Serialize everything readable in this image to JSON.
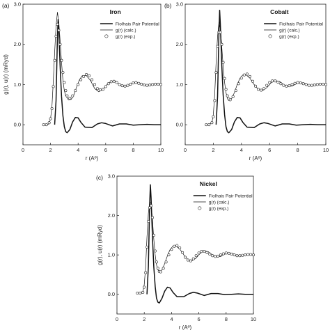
{
  "chart_data": [
    {
      "type": "line",
      "panel_label": "(a)",
      "title": "Iron",
      "xlabel": "r (Aº)",
      "ylabel": "g(r), u(r) (mRyd)",
      "xlim": [
        0,
        10
      ],
      "ylim": [
        -0.5,
        3.0
      ],
      "xticks": [
        0,
        2,
        4,
        6,
        8,
        10
      ],
      "yticks": [
        0.0,
        1.0,
        2.0,
        3.0
      ],
      "xtick_labels": [
        "0",
        "2",
        "4",
        "6",
        "8",
        "10"
      ],
      "ytick_labels": [
        "0.0",
        "1.0",
        "2.0",
        "3.0"
      ],
      "legend_position": "top-right",
      "series": [
        {
          "name": "Fiolhais Pair Potential",
          "style": "thick-line",
          "x": [
            2.3,
            2.4,
            2.5,
            2.55,
            2.6,
            2.7,
            2.8,
            2.9,
            3.0,
            3.1,
            3.2,
            3.4,
            3.6,
            3.8,
            4.0,
            4.2,
            4.5,
            5.0,
            5.4,
            5.7,
            6.0,
            6.5,
            7.0,
            7.5,
            8.0,
            8.5,
            9.0,
            9.5,
            10.0
          ],
          "y": [
            0.0,
            0.6,
            2.2,
            2.62,
            2.3,
            1.4,
            0.7,
            0.22,
            -0.05,
            -0.17,
            -0.2,
            -0.12,
            0.07,
            0.18,
            0.17,
            0.06,
            -0.06,
            -0.07,
            0.02,
            0.05,
            0.03,
            -0.03,
            0.02,
            0.02,
            -0.01,
            0.0,
            0.01,
            0.0,
            0.0
          ]
        },
        {
          "name": "g(r) (calc.)",
          "style": "thin-line",
          "x": [
            1.7,
            1.9,
            2.0,
            2.1,
            2.2,
            2.3,
            2.4,
            2.5,
            2.6,
            2.7,
            2.8,
            2.9,
            3.0,
            3.1,
            3.3,
            3.5,
            3.7,
            3.9,
            4.1,
            4.3,
            4.6,
            4.9,
            5.2,
            5.5,
            5.8,
            6.1,
            6.4,
            6.7,
            7.0,
            7.3,
            7.6,
            7.9,
            8.2,
            8.5,
            8.8,
            9.1,
            9.4,
            9.7,
            10.0
          ],
          "y": [
            0.0,
            0.02,
            0.15,
            0.45,
            1.1,
            1.8,
            2.45,
            2.8,
            2.55,
            2.05,
            1.55,
            1.1,
            0.85,
            0.72,
            0.62,
            0.63,
            0.75,
            0.95,
            1.12,
            1.22,
            1.22,
            1.1,
            0.9,
            0.82,
            0.88,
            1.0,
            1.08,
            1.08,
            1.0,
            0.95,
            0.96,
            1.02,
            1.06,
            1.03,
            0.98,
            0.97,
            1.0,
            1.02,
            1.0
          ]
        },
        {
          "name": "g(r) (exp.)",
          "style": "markers",
          "x": [
            1.5,
            1.7,
            1.9,
            2.0,
            2.1,
            2.2,
            2.3,
            2.4,
            2.5,
            2.6,
            2.7,
            2.8,
            2.9,
            3.0,
            3.1,
            3.2,
            3.4,
            3.6,
            3.8,
            4.0,
            4.2,
            4.4,
            4.6,
            4.8,
            5.0,
            5.2,
            5.4,
            5.6,
            5.8,
            6.0,
            6.2,
            6.4,
            6.6,
            6.8,
            7.0,
            7.2,
            7.4,
            7.6,
            7.8,
            8.0,
            8.2,
            8.4,
            8.6,
            8.8,
            9.0,
            9.2,
            9.4,
            9.6,
            9.8,
            10.0
          ],
          "y": [
            0.0,
            0.0,
            0.05,
            0.15,
            0.4,
            0.95,
            1.6,
            2.2,
            2.5,
            2.35,
            2.0,
            1.6,
            1.3,
            1.05,
            0.85,
            0.72,
            0.66,
            0.72,
            0.85,
            1.0,
            1.12,
            1.2,
            1.25,
            1.22,
            1.12,
            1.0,
            0.9,
            0.87,
            0.88,
            0.95,
            1.02,
            1.07,
            1.08,
            1.05,
            1.0,
            0.97,
            0.96,
            0.98,
            1.01,
            1.04,
            1.05,
            1.03,
            1.01,
            0.99,
            0.98,
            0.99,
            1.0,
            1.01,
            1.01,
            1.0
          ]
        }
      ]
    },
    {
      "type": "line",
      "panel_label": "(b)",
      "title": "Cobalt",
      "xlabel": "r (Aº)",
      "ylabel": "",
      "xlim": [
        0,
        10
      ],
      "ylim": [
        -0.5,
        3.0
      ],
      "xticks": [
        0,
        2,
        4,
        6,
        8,
        10
      ],
      "yticks": [
        0.0,
        1.0,
        2.0,
        3.0
      ],
      "xtick_labels": [
        "0",
        "2",
        "4",
        "6",
        "8",
        "10"
      ],
      "ytick_labels": [
        "0.0",
        "1.0",
        "2.0",
        "3.0"
      ],
      "legend_position": "top-right",
      "series": [
        {
          "name": "Fiolhais Pair Potential",
          "style": "thick-line",
          "x": [
            2.2,
            2.3,
            2.4,
            2.45,
            2.5,
            2.6,
            2.7,
            2.8,
            2.9,
            3.0,
            3.1,
            3.3,
            3.5,
            3.7,
            3.9,
            4.1,
            4.4,
            4.9,
            5.3,
            5.6,
            5.9,
            6.4,
            6.9,
            7.4,
            7.9,
            8.4,
            8.9,
            9.4,
            10.0
          ],
          "y": [
            0.0,
            0.7,
            2.3,
            2.85,
            2.5,
            1.5,
            0.75,
            0.25,
            -0.05,
            -0.17,
            -0.2,
            -0.12,
            0.07,
            0.18,
            0.17,
            0.06,
            -0.06,
            -0.07,
            0.02,
            0.05,
            0.03,
            -0.03,
            0.02,
            0.02,
            -0.01,
            0.0,
            0.01,
            0.0,
            0.0
          ]
        },
        {
          "name": "g(r) (calc.)",
          "style": "thin-line",
          "x": [
            1.7,
            1.9,
            2.0,
            2.1,
            2.2,
            2.3,
            2.4,
            2.5,
            2.6,
            2.7,
            2.8,
            2.9,
            3.0,
            3.1,
            3.3,
            3.5,
            3.7,
            3.9,
            4.1,
            4.3,
            4.6,
            4.9,
            5.2,
            5.5,
            5.8,
            6.1,
            6.4,
            6.7,
            7.0,
            7.3,
            7.6,
            7.9,
            8.2,
            8.5,
            8.8,
            9.1,
            9.4,
            9.7,
            10.0
          ],
          "y": [
            0.0,
            0.05,
            0.25,
            0.75,
            1.55,
            2.2,
            2.55,
            2.4,
            1.95,
            1.45,
            1.05,
            0.8,
            0.66,
            0.6,
            0.65,
            0.8,
            1.0,
            1.16,
            1.24,
            1.25,
            1.16,
            1.0,
            0.88,
            0.85,
            0.92,
            1.04,
            1.1,
            1.08,
            1.0,
            0.95,
            0.96,
            1.02,
            1.05,
            1.03,
            0.98,
            0.97,
            1.0,
            1.02,
            1.0
          ]
        },
        {
          "name": "g(r) (exp.)",
          "style": "markers",
          "x": [
            1.5,
            1.7,
            1.9,
            2.0,
            2.1,
            2.2,
            2.3,
            2.4,
            2.5,
            2.6,
            2.7,
            2.8,
            2.9,
            3.0,
            3.1,
            3.2,
            3.4,
            3.6,
            3.8,
            4.0,
            4.2,
            4.4,
            4.6,
            4.8,
            5.0,
            5.2,
            5.4,
            5.6,
            5.8,
            6.0,
            6.2,
            6.4,
            6.6,
            6.8,
            7.0,
            7.2,
            7.4,
            7.6,
            7.8,
            8.0,
            8.2,
            8.4,
            8.6,
            8.8,
            9.0,
            9.2,
            9.4,
            9.6,
            9.8,
            10.0
          ],
          "y": [
            0.0,
            0.0,
            0.05,
            0.2,
            0.6,
            1.3,
            1.95,
            2.3,
            2.3,
            2.0,
            1.55,
            1.15,
            0.88,
            0.72,
            0.64,
            0.62,
            0.7,
            0.85,
            1.02,
            1.16,
            1.24,
            1.26,
            1.2,
            1.08,
            0.96,
            0.88,
            0.86,
            0.9,
            0.98,
            1.05,
            1.09,
            1.09,
            1.06,
            1.02,
            0.98,
            0.96,
            0.97,
            1.0,
            1.03,
            1.05,
            1.04,
            1.02,
            1.0,
            0.98,
            0.98,
            0.99,
            1.0,
            1.01,
            1.01,
            1.0
          ]
        }
      ]
    },
    {
      "type": "line",
      "panel_label": "(c)",
      "title": "Nickel",
      "xlabel": "r (Aº)",
      "ylabel": "g(r), u(r) (mRyd)",
      "xlim": [
        0,
        10
      ],
      "ylim": [
        -0.5,
        3.0
      ],
      "xticks": [
        0,
        2,
        4,
        6,
        8,
        10
      ],
      "yticks": [
        0.0,
        1.0,
        2.0,
        3.0
      ],
      "xtick_labels": [
        "0",
        "2",
        "4",
        "6",
        "8",
        "10"
      ],
      "ytick_labels": [
        "0.0",
        "1.0",
        "2.0",
        "3.0"
      ],
      "legend_position": "top-right",
      "series": [
        {
          "name": "Fiolhais Pair Potential",
          "style": "thick-line",
          "x": [
            2.2,
            2.3,
            2.4,
            2.45,
            2.5,
            2.6,
            2.7,
            2.8,
            2.9,
            3.0,
            3.1,
            3.3,
            3.5,
            3.7,
            3.9,
            4.1,
            4.4,
            4.9,
            5.3,
            5.6,
            5.9,
            6.4,
            6.9,
            7.4,
            7.9,
            8.4,
            8.9,
            9.4,
            10.0
          ],
          "y": [
            0.0,
            0.7,
            2.3,
            2.78,
            2.45,
            1.45,
            0.7,
            0.2,
            -0.1,
            -0.2,
            -0.22,
            -0.1,
            0.08,
            0.18,
            0.16,
            0.05,
            -0.06,
            -0.06,
            0.02,
            0.05,
            0.03,
            -0.03,
            0.02,
            0.02,
            -0.01,
            0.0,
            0.01,
            0.0,
            0.0
          ]
        },
        {
          "name": "g(r) (calc.)",
          "style": "thin-line",
          "x": [
            1.7,
            1.9,
            2.0,
            2.1,
            2.2,
            2.3,
            2.4,
            2.5,
            2.6,
            2.7,
            2.8,
            2.9,
            3.0,
            3.1,
            3.3,
            3.5,
            3.7,
            3.9,
            4.1,
            4.3,
            4.6,
            4.9,
            5.2,
            5.5,
            5.8,
            6.1,
            6.4,
            6.7,
            7.0,
            7.3,
            7.6,
            7.9,
            8.2,
            8.5,
            8.8,
            9.1,
            9.4,
            9.7,
            10.0
          ],
          "y": [
            0.0,
            0.05,
            0.25,
            0.7,
            1.45,
            2.05,
            2.35,
            2.3,
            1.9,
            1.4,
            1.0,
            0.75,
            0.62,
            0.57,
            0.62,
            0.78,
            0.98,
            1.14,
            1.22,
            1.23,
            1.15,
            1.0,
            0.88,
            0.85,
            0.92,
            1.04,
            1.1,
            1.08,
            1.0,
            0.95,
            0.96,
            1.02,
            1.05,
            1.03,
            0.98,
            0.97,
            1.0,
            1.02,
            1.0
          ]
        },
        {
          "name": "g(r) (exp.)",
          "style": "markers",
          "x": [
            1.5,
            1.7,
            1.9,
            2.0,
            2.1,
            2.2,
            2.3,
            2.4,
            2.5,
            2.6,
            2.7,
            2.8,
            2.9,
            3.0,
            3.1,
            3.2,
            3.4,
            3.6,
            3.8,
            4.0,
            4.2,
            4.4,
            4.6,
            4.8,
            5.0,
            5.2,
            5.4,
            5.6,
            5.8,
            6.0,
            6.2,
            6.4,
            6.6,
            6.8,
            7.0,
            7.2,
            7.4,
            7.6,
            7.8,
            8.0,
            8.2,
            8.4,
            8.6,
            8.8,
            9.0,
            9.2,
            9.4,
            9.6,
            9.8,
            10.0
          ],
          "y": [
            0.03,
            0.03,
            0.05,
            0.18,
            0.55,
            1.2,
            1.85,
            2.2,
            2.25,
            1.95,
            1.5,
            1.1,
            0.82,
            0.66,
            0.58,
            0.57,
            0.66,
            0.82,
            1.0,
            1.14,
            1.22,
            1.24,
            1.18,
            1.06,
            0.94,
            0.87,
            0.85,
            0.9,
            0.98,
            1.05,
            1.09,
            1.09,
            1.06,
            1.02,
            0.98,
            0.96,
            0.97,
            1.0,
            1.03,
            1.05,
            1.04,
            1.02,
            1.0,
            0.98,
            0.98,
            0.99,
            1.0,
            1.01,
            1.01,
            1.0
          ]
        }
      ]
    }
  ]
}
